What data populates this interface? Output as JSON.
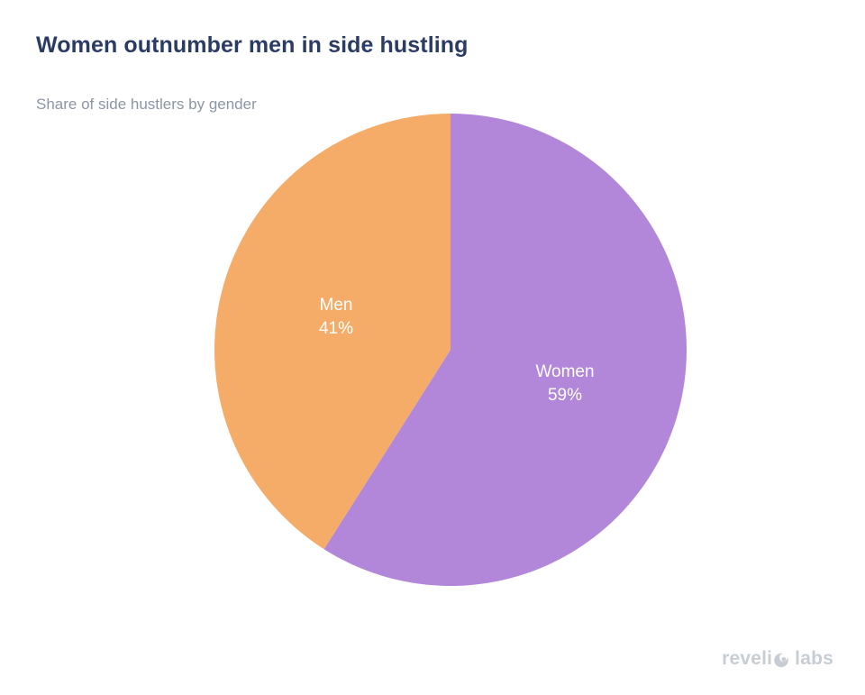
{
  "header": {
    "title": "Women outnumber men in side hustling",
    "subtitle": "Share of side hustlers by gender"
  },
  "chart_data": {
    "type": "pie",
    "title": "Women outnumber men in side hustling",
    "subtitle": "Share of side hustlers by gender",
    "start_angle_deg": 0,
    "direction": "clockwise",
    "legend": "none",
    "labels_position": "inside",
    "slices": [
      {
        "label": "Women",
        "value": 59,
        "percent_label": "59%",
        "color": "#b287da",
        "text_color": "#ffffff"
      },
      {
        "label": "Men",
        "value": 41,
        "percent_label": "41%",
        "color": "#f6ac69",
        "text_color": "#ffffff"
      }
    ]
  },
  "branding": {
    "full_text": "revelio labs",
    "text_before_mark": "reveli",
    "mark_icon": "revelio-o-icon",
    "text_after_mark": "labs",
    "color": "#c8cdd5"
  },
  "colors": {
    "background": "#ffffff",
    "title": "#2b3c64",
    "subtitle": "#8d96a4",
    "women_slice": "#b287da",
    "men_slice": "#f6ac69",
    "slice_label_text": "#ffffff",
    "logo": "#c8cdd5"
  }
}
